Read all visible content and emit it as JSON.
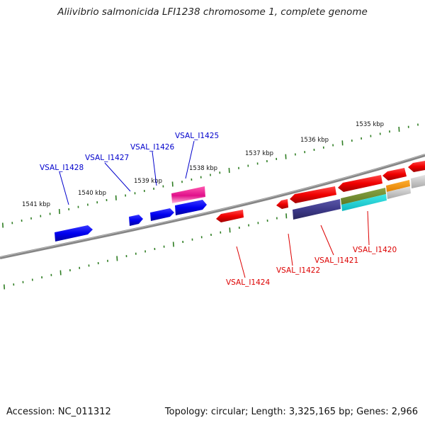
{
  "title": "Aliivibrio salmonicida LFI1238 chromosome 1, complete genome",
  "footer": {
    "accession": "Accession: NC_011312",
    "topology": "Topology: circular; Length: 3,325,165 bp; Genes: 2,966"
  },
  "scale_ticks": [
    "1535 kbp",
    "1536 kbp",
    "1537 kbp",
    "1538 kbp",
    "1539 kbp",
    "1540 kbp",
    "1541 kbp"
  ],
  "gene_labels_forward": [
    "VSAL_I1425",
    "VSAL_I1426",
    "VSAL_I1427",
    "VSAL_I1428"
  ],
  "gene_labels_reverse": [
    "VSAL_I1420",
    "VSAL_I1421",
    "VSAL_I1422",
    "VSAL_I1424"
  ],
  "colors": {
    "forward_label": "#0000cc",
    "reverse_label": "#dd0000",
    "tick": "#2e7d22",
    "backbone": "#808080"
  }
}
